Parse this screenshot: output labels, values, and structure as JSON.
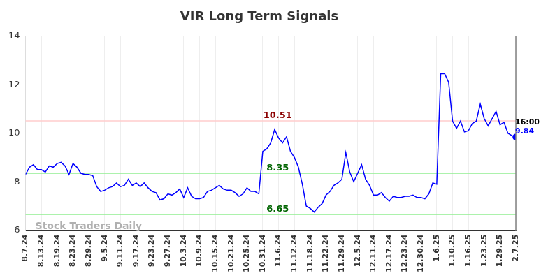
{
  "chart_data": {
    "type": "line",
    "title": "VIR Long Term Signals",
    "categories": [
      "8.7.24",
      null,
      null,
      null,
      "8.13.24",
      null,
      null,
      null,
      "8.19.24",
      null,
      null,
      null,
      "8.23.24",
      null,
      null,
      null,
      "8.29.24",
      null,
      null,
      null,
      "9.5.24",
      null,
      null,
      null,
      "9.11.24",
      null,
      null,
      null,
      "9.17.24",
      null,
      null,
      null,
      "9.23.24",
      null,
      null,
      null,
      "9.27.24",
      null,
      null,
      null,
      "10.3.24",
      null,
      null,
      null,
      "10.9.24",
      null,
      null,
      null,
      "10.15.24",
      null,
      null,
      null,
      "10.21.24",
      null,
      null,
      null,
      "10.25.24",
      null,
      null,
      null,
      "10.31.24",
      null,
      null,
      null,
      "11.6.24",
      null,
      null,
      null,
      "11.12.24",
      null,
      null,
      null,
      "11.18.24",
      null,
      null,
      null,
      "11.22.24",
      null,
      null,
      null,
      "11.29.24",
      null,
      null,
      null,
      "12.5.24",
      null,
      null,
      null,
      "12.11.24",
      null,
      null,
      null,
      "12.17.24",
      null,
      null,
      null,
      "12.23.24",
      null,
      null,
      null,
      "12.30.24",
      null,
      null,
      null,
      "1.6.25",
      null,
      null,
      null,
      "1.10.25",
      null,
      null,
      null,
      "1.16.25",
      null,
      null,
      null,
      "1.23.25",
      null,
      null,
      null,
      "1.29.25",
      null,
      null,
      null,
      "2.7.25"
    ],
    "values": [
      8.3,
      8.6,
      8.7,
      8.5,
      8.5,
      8.4,
      8.65,
      8.6,
      8.75,
      8.8,
      8.65,
      8.3,
      8.75,
      8.6,
      8.35,
      8.3,
      8.3,
      8.25,
      7.8,
      7.6,
      7.65,
      7.75,
      7.8,
      7.95,
      7.8,
      7.85,
      8.1,
      7.85,
      7.95,
      7.8,
      7.95,
      7.75,
      7.6,
      7.55,
      7.25,
      7.3,
      7.5,
      7.45,
      7.55,
      7.7,
      7.35,
      7.75,
      7.4,
      7.3,
      7.3,
      7.35,
      7.6,
      7.65,
      7.75,
      7.85,
      7.7,
      7.65,
      7.65,
      7.55,
      7.4,
      7.5,
      7.75,
      7.6,
      7.6,
      7.5,
      9.25,
      9.35,
      9.6,
      10.15,
      9.8,
      9.6,
      9.85,
      9.25,
      9.0,
      8.6,
      7.9,
      7.0,
      6.9,
      6.75,
      6.95,
      7.1,
      7.45,
      7.6,
      7.85,
      7.95,
      8.1,
      9.2,
      8.4,
      8.0,
      8.35,
      8.7,
      8.1,
      7.85,
      7.45,
      7.45,
      7.55,
      7.35,
      7.2,
      7.4,
      7.35,
      7.35,
      7.4,
      7.4,
      7.45,
      7.35,
      7.35,
      7.3,
      7.5,
      7.95,
      7.9,
      12.45,
      12.45,
      12.1,
      10.5,
      10.2,
      10.5,
      10.05,
      10.1,
      10.4,
      10.5,
      11.2,
      10.6,
      10.3,
      10.6,
      10.9,
      10.35,
      10.45,
      10.0,
      9.9,
      9.84
    ],
    "color": "#0000ff",
    "ylim": [
      6,
      14
    ],
    "yticks": [
      6,
      8,
      10,
      12,
      14
    ],
    "grid": true,
    "annotations": [
      {
        "text": "10.51",
        "y": 10.51,
        "color": "#ffcccc",
        "text_color": "#8b0000"
      },
      {
        "text": "8.35",
        "y": 8.35,
        "color": "#90ee90",
        "text_color": "#006400"
      },
      {
        "text": "6.65",
        "y": 6.65,
        "color": "#90ee90",
        "text_color": "#006400"
      }
    ],
    "last_point": {
      "time_label": "16:00",
      "value_label": "9.84"
    },
    "watermark": "Stock Traders Daily"
  }
}
